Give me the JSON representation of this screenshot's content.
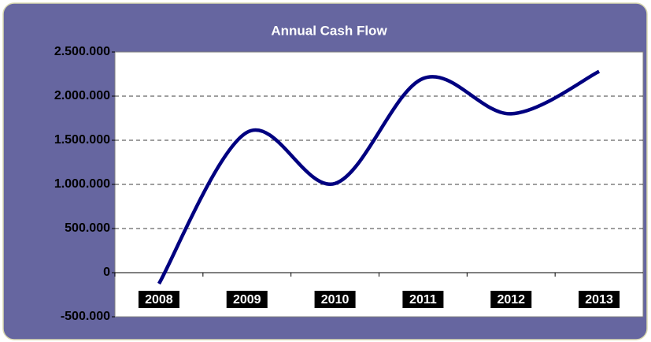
{
  "chart_data": {
    "type": "line",
    "title": "Annual Cash Flow",
    "categories": [
      "2008",
      "2009",
      "2010",
      "2011",
      "2012",
      "2013"
    ],
    "series": [
      {
        "name": "Cash Flow",
        "color": "#000080",
        "values": [
          -125000,
          1590000,
          1010000,
          2200000,
          1800000,
          2280000
        ]
      }
    ],
    "ylim": [
      -500000,
      2500000
    ],
    "yticks": [
      {
        "value": -500000,
        "label": "-500.000"
      },
      0,
      {
        "value": 500000,
        "label": "500.000"
      },
      {
        "value": 1000000,
        "label": "1.000.000"
      },
      {
        "value": 1500000,
        "label": "1.500.000"
      },
      {
        "value": 2000000,
        "label": "2.000.000"
      },
      {
        "value": 2500000,
        "label": "2.500.000"
      }
    ],
    "grid": true
  }
}
